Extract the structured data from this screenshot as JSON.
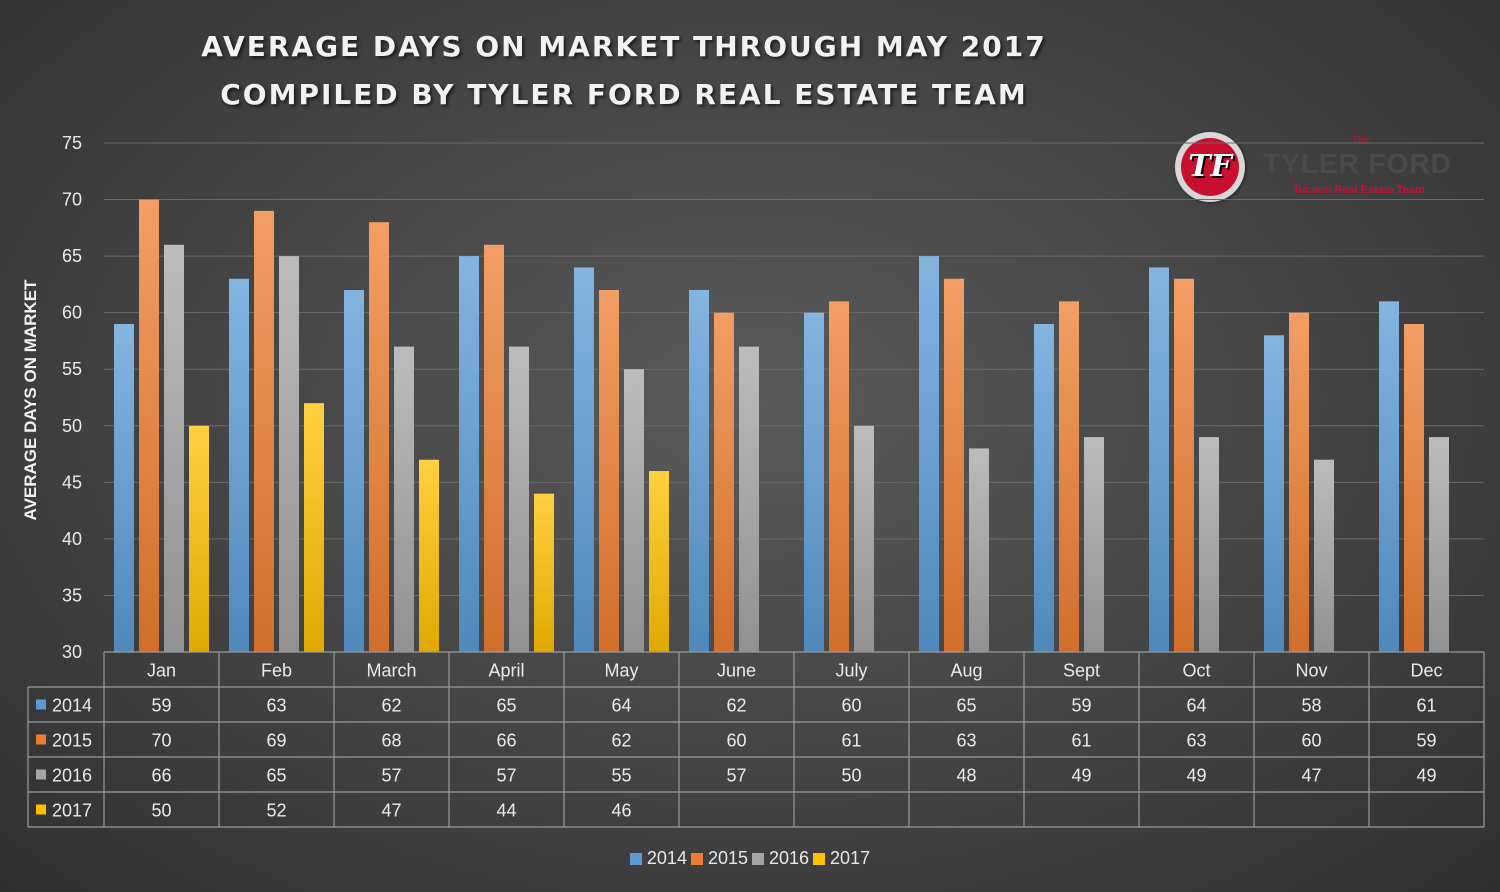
{
  "chart_data": {
    "type": "bar",
    "title": "AVERAGE DAYS ON MARKET THROUGH MAY 2017",
    "subtitle": "COMPILED BY TYLER FORD REAL ESTATE TEAM",
    "ylabel": "AVERAGE DAYS ON MARKET",
    "xlabel": "",
    "ylim": [
      30,
      75
    ],
    "yticks": [
      30,
      35,
      40,
      45,
      50,
      55,
      60,
      65,
      70,
      75
    ],
    "grid": true,
    "legend": "bottom",
    "categories": [
      "Jan",
      "Feb",
      "March",
      "April",
      "May",
      "June",
      "July",
      "Aug",
      "Sept",
      "Oct",
      "Nov",
      "Dec"
    ],
    "series": [
      {
        "name": "2014",
        "color": "#5b9bd5",
        "values": [
          59,
          63,
          62,
          65,
          64,
          62,
          60,
          65,
          59,
          64,
          58,
          61
        ]
      },
      {
        "name": "2015",
        "color": "#ed7d31",
        "values": [
          70,
          69,
          68,
          66,
          62,
          60,
          61,
          63,
          61,
          63,
          60,
          59
        ]
      },
      {
        "name": "2016",
        "color": "#a5a5a5",
        "values": [
          66,
          65,
          57,
          57,
          55,
          57,
          50,
          48,
          49,
          49,
          47,
          49
        ]
      },
      {
        "name": "2017",
        "color": "#ffc000",
        "values": [
          50,
          52,
          47,
          44,
          46,
          null,
          null,
          null,
          null,
          null,
          null,
          null
        ]
      }
    ]
  },
  "logo": {
    "initials": "TF",
    "the": "The",
    "name": "TYLER FORD",
    "tagline": "Tucson Real Estate Team"
  }
}
